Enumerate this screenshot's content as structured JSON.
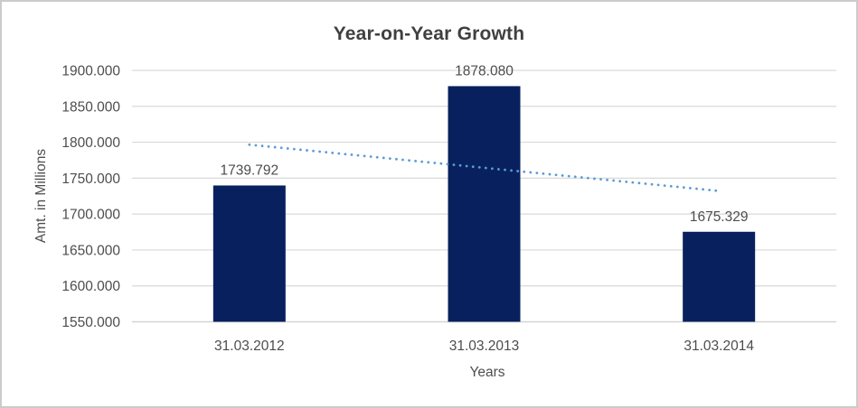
{
  "window": {
    "background": "#FFFFFF",
    "border_color": "#CBCBCB"
  },
  "chart_data": {
    "type": "bar",
    "title": "Year-on-Year Growth",
    "xlabel": "Years",
    "ylabel": "Amt. in Millions",
    "categories": [
      "31.03.2012",
      "31.03.2013",
      "31.03.2014"
    ],
    "values": [
      1739.792,
      1878.08,
      1675.329
    ],
    "data_labels": [
      "1739.792",
      "1878.080",
      "1675.329"
    ],
    "ylim": [
      1550,
      1900
    ],
    "ytick_step": 50,
    "yticks": [
      {
        "value": 1900,
        "label": "1900.000"
      },
      {
        "value": 1850,
        "label": "1850.000"
      },
      {
        "value": 1800,
        "label": "1800.000"
      },
      {
        "value": 1750,
        "label": "1750.000"
      },
      {
        "value": 1700,
        "label": "1700.000"
      },
      {
        "value": 1650,
        "label": "1650.000"
      },
      {
        "value": 1600,
        "label": "1600.000"
      },
      {
        "value": 1550,
        "label": "1550.000"
      }
    ],
    "grid": true,
    "legend": "none",
    "trendline": {
      "type": "linear",
      "style": "dotted",
      "start_value": 1796.6,
      "end_value": 1732.2
    }
  },
  "colors": {
    "bar": "#08215E",
    "trendline": "#5B9BD5",
    "gridline": "#D9D9D9",
    "axis_line": "#D2D2D2",
    "tick_text": "#4D4D4D",
    "title_text": "#404040"
  }
}
